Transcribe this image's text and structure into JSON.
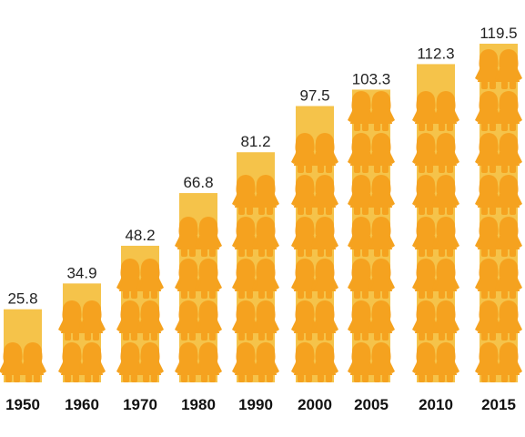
{
  "chart_data": {
    "type": "bar",
    "categories": [
      "1950",
      "1960",
      "1970",
      "1980",
      "1990",
      "2000",
      "2005",
      "2010",
      "2015"
    ],
    "values": [
      25.8,
      34.9,
      48.2,
      66.8,
      81.2,
      97.5,
      103.3,
      112.3,
      119.5
    ],
    "value_labels": [
      "25.8",
      "34.9",
      "48.2",
      "66.8",
      "81.2",
      "97.5",
      "103.3",
      "112.3",
      "119.5"
    ],
    "ylim": [
      0,
      119.5
    ],
    "grid": false,
    "legend": "none",
    "mark_style": "stacked child pictograms"
  },
  "colors": {
    "bar": "#f5c34a",
    "figure": "#f5a21f",
    "value_text": "#222222",
    "category_text": "#111111",
    "background": "#ffffff"
  },
  "icon": "child-figure-icon"
}
